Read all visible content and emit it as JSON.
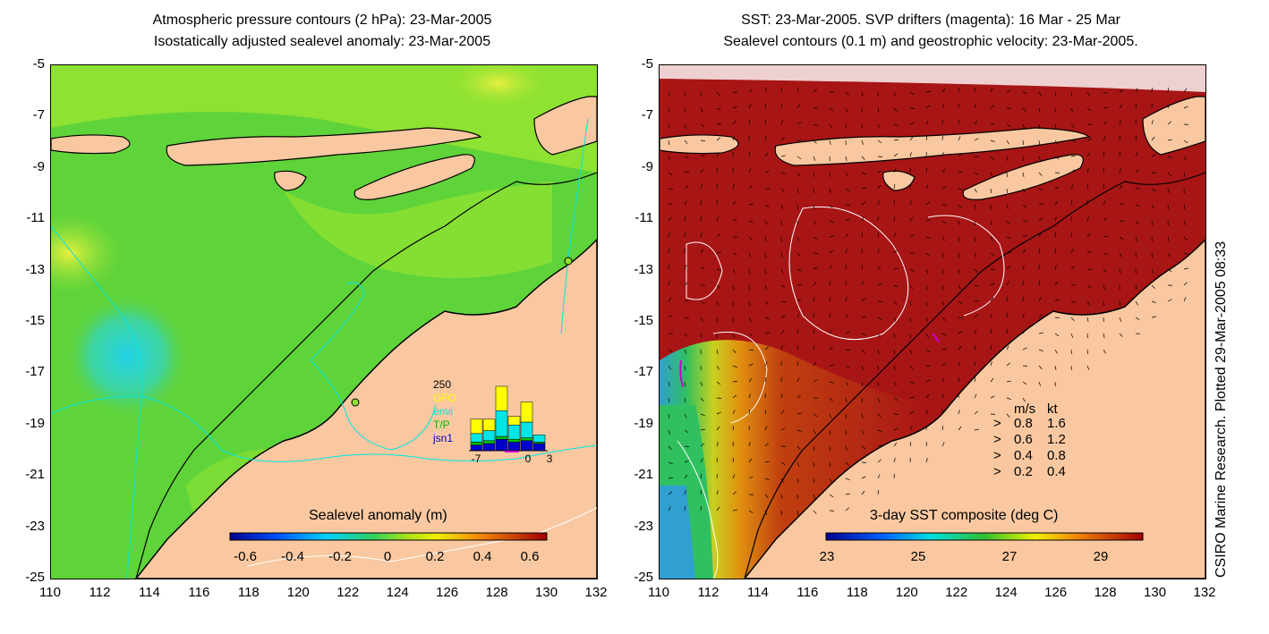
{
  "left_panel": {
    "title_line1": "Atmospheric pressure contours (2 hPa): 23-Mar-2005",
    "title_line2": "Isostatically adjusted sealevel anomaly: 23-Mar-2005",
    "y_ticks": [
      "-5",
      "-7",
      "-9",
      "-11",
      "-13",
      "-15",
      "-17",
      "-19",
      "-21",
      "-23",
      "-25"
    ],
    "x_ticks": [
      "110",
      "112",
      "114",
      "116",
      "118",
      "120",
      "122",
      "124",
      "126",
      "128",
      "130",
      "132"
    ],
    "colorbar": {
      "title": "Sealevel anomaly (m)",
      "labels": [
        "-0.6",
        "-0.4",
        "-0.2",
        "0",
        "0.2",
        "0.4",
        "0.6"
      ]
    },
    "histogram": {
      "ymax_label": "250",
      "legend": [
        {
          "label": "GFO",
          "color": "#ffff00"
        },
        {
          "label": "envi",
          "color": "#00e5e5"
        },
        {
          "label": "T/P",
          "color": "#00c000"
        },
        {
          "label": "jsn1",
          "color": "#0000cc"
        }
      ],
      "x_labels": [
        "-7",
        "0",
        "3"
      ],
      "stack_values": [
        {
          "jsn1": 20,
          "tp": 10,
          "envi": 30,
          "gfo": 50
        },
        {
          "jsn1": 25,
          "tp": 10,
          "envi": 35,
          "gfo": 40
        },
        {
          "jsn1": 40,
          "tp": 10,
          "envi": 90,
          "gfo": 85
        },
        {
          "jsn1": 30,
          "tp": 10,
          "envi": 50,
          "gfo": 30
        },
        {
          "jsn1": 35,
          "tp": 10,
          "envi": 55,
          "gfo": 70
        },
        {
          "jsn1": 25,
          "tp": 5,
          "envi": 25,
          "gfo": 0
        }
      ]
    }
  },
  "right_panel": {
    "title_line1": "SST: 23-Mar-2005. SVP drifters (magenta): 16 Mar - 25 Mar",
    "title_line2": "Sealevel contours (0.1 m) and geostrophic velocity: 23-Mar-2005.",
    "y_ticks": [
      "-5",
      "-7",
      "-9",
      "-11",
      "-13",
      "-15",
      "-17",
      "-19",
      "-21",
      "-23",
      "-25"
    ],
    "x_ticks": [
      "110",
      "112",
      "114",
      "116",
      "118",
      "120",
      "122",
      "124",
      "126",
      "128",
      "130",
      "132"
    ],
    "colorbar": {
      "title": "3-day SST composite (deg C)",
      "labels": [
        "23",
        "25",
        "27",
        "29"
      ]
    },
    "velocity_legend": {
      "header_ms": "m/s",
      "header_kt": "kt",
      "rows": [
        {
          "ms": "0.8",
          "kt": "1.6"
        },
        {
          "ms": "0.6",
          "kt": "1.2"
        },
        {
          "ms": "0.4",
          "kt": "0.8"
        },
        {
          "ms": "0.2",
          "kt": "0.4"
        }
      ]
    }
  },
  "side_credit": "CSIRO Marine Research. Plotted 29-Mar-2005 08:33",
  "colors": {
    "land": "#f9c8a0",
    "ocean_green": "#5fd33a",
    "ocean_light": "#8ee232",
    "sst_red": "#a81515",
    "sst_orange": "#e07a10"
  }
}
